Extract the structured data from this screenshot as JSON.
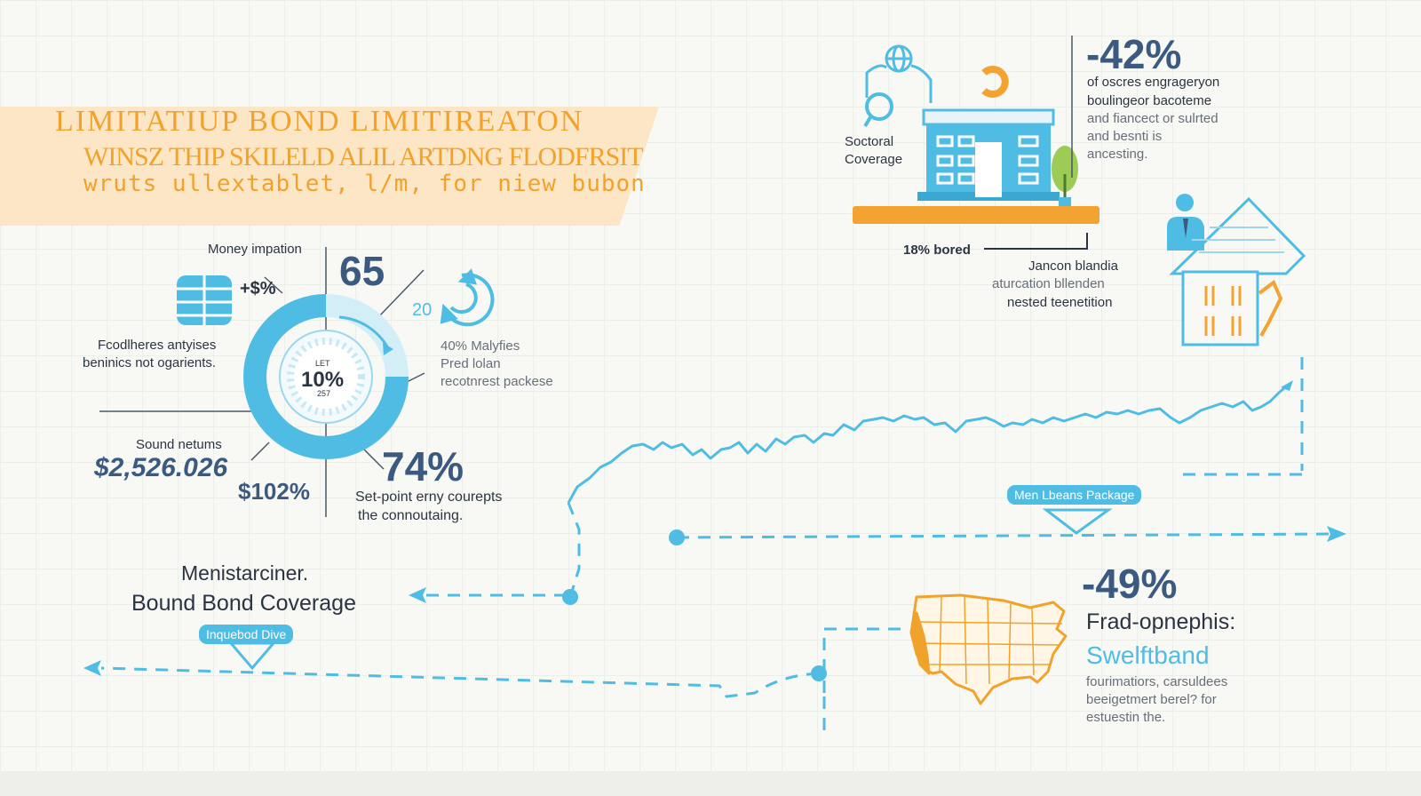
{
  "header": {
    "title": "LIMITATIUP BOND LIMITIREATON",
    "subtitle_line1": "WINSZ THIP SKILELD ALIL ARTDNG FLODFRSIT",
    "subtitle_line2": "wruts ullextablet, l/m, for niew bubon"
  },
  "left_panel": {
    "money_label": "Money impation",
    "plus_pct": "+$%",
    "stat_65": "65",
    "stat_20": "20",
    "food_line1": "Fcodlheres antyises",
    "food_line2": "beninics not ogarients.",
    "donut_small": "LET",
    "donut_pct": "10%",
    "donut_sub": "257",
    "malyfies_line1": "40% Malyfies",
    "malyfies_line2": "Pred lolan",
    "malyfies_line3": "recotnrest packese",
    "sound_label": "Sound netums",
    "sound_value": "$2,526.026",
    "pct_102": "$102%",
    "stat_74": "74%",
    "setpoint_line1": "Set-point erny courepts",
    "setpoint_line2": "the connoutaing.",
    "menist_line1": "Menistarciner.",
    "menist_line2": "Bound Bond Coverage",
    "inquebod_pill": "Inquebod Dive"
  },
  "right_panel": {
    "sectoral_line1": "Soctoral",
    "sectoral_line2": "Coverage",
    "stat_neg42": "-42%",
    "neg42_line1": "of oscres engrageryon",
    "neg42_line2": "boulingeor bacoteme",
    "neg42_line3": "and fiancect or sulrted",
    "neg42_line4": "and besnti is",
    "neg42_line5": "ancesting.",
    "bored_label": "18% bored",
    "jancon_line1": "Jancon blandia",
    "jancon_line2": "aturcation bllenden",
    "jancon_line3": "nested teenetition",
    "men_pill": "Men Lbeans Package",
    "stat_neg49": "-49%",
    "frad_label": "Frad-opnephis:",
    "swelft_label": "Swelftband",
    "frad_line1": "fourimatiors, carsuldees",
    "frad_line2": "beeigetmert berel? for",
    "frad_line3": "estuestin the."
  },
  "icons": [
    "database-icon",
    "refresh-icon",
    "globe-icon",
    "magnifier-icon",
    "building-icon",
    "tree-icon",
    "house-icon",
    "person-icon",
    "usa-map-icon"
  ],
  "colors": {
    "accent_orange": "#f1a22a",
    "accent_blue": "#4fbde3",
    "navy": "#3c5a80",
    "banner": "#fde6c6"
  }
}
